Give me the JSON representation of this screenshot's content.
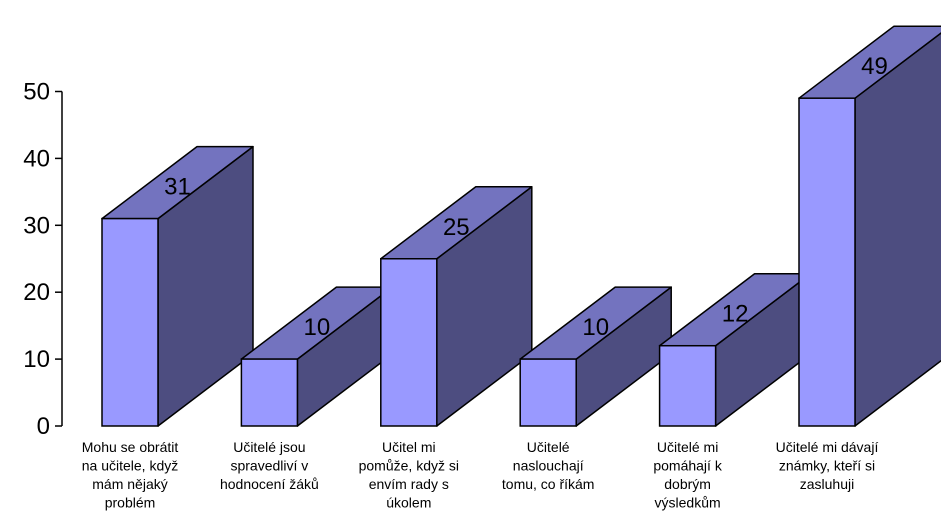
{
  "chart_data": {
    "type": "bar",
    "categories": [
      [
        "Mohu se obrátit",
        "na učitele, když",
        "mám nějaký",
        "problém"
      ],
      [
        "Učitelé jsou",
        "spravedliví v",
        "hodnocení žáků"
      ],
      [
        "Učitel mi",
        "pomůže, když si",
        "envím rady s",
        "úkolem"
      ],
      [
        "Učitelé",
        "naslouchají",
        "tomu, co říkám"
      ],
      [
        "Učitelé mi",
        "pomáhají k",
        "dobrým",
        "výsledkům"
      ],
      [
        "Učitelé mi dávají",
        "známky, kteří si",
        "zasluhuji"
      ]
    ],
    "values": [
      31,
      10,
      25,
      10,
      12,
      49
    ],
    "ylim": [
      0,
      50
    ],
    "yticks": [
      0,
      10,
      20,
      30,
      40,
      50
    ],
    "grid": false,
    "style": "3d",
    "colors": {
      "front": "#9999ff",
      "top": "#7373bf",
      "side": "#4d4d80",
      "stroke": "#000000"
    }
  }
}
